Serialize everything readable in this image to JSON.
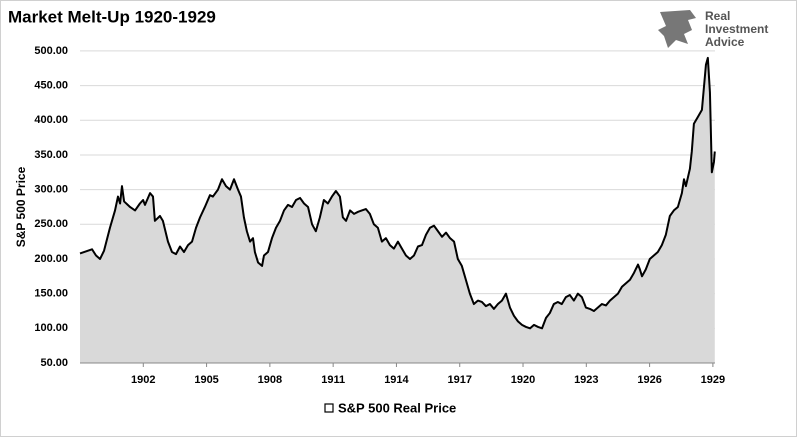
{
  "chart_data": {
    "type": "area",
    "title": "Market Melt-Up 1920-1929",
    "ylabel": "S&P 500 Price",
    "x": [
      1899.0,
      1899.38,
      1899.57,
      1899.76,
      1899.95,
      1900.14,
      1900.42,
      1900.66,
      1900.8,
      1900.9,
      1900.99,
      1901.09,
      1901.37,
      1901.61,
      1901.84,
      1901.99,
      1902.08,
      1902.32,
      1902.46,
      1902.55,
      1902.79,
      1902.93,
      1903.17,
      1903.36,
      1903.55,
      1903.74,
      1903.93,
      1904.12,
      1904.31,
      1904.5,
      1904.69,
      1904.92,
      1905.16,
      1905.3,
      1905.54,
      1905.73,
      1905.92,
      1906.11,
      1906.3,
      1906.49,
      1906.63,
      1906.77,
      1906.91,
      1907.06,
      1907.2,
      1907.29,
      1907.44,
      1907.63,
      1907.72,
      1907.91,
      1908.1,
      1908.29,
      1908.48,
      1908.67,
      1908.86,
      1909.05,
      1909.24,
      1909.43,
      1909.62,
      1909.81,
      1910.0,
      1910.18,
      1910.37,
      1910.56,
      1910.75,
      1910.94,
      1911.13,
      1911.32,
      1911.46,
      1911.61,
      1911.8,
      1911.99,
      1912.18,
      1912.36,
      1912.55,
      1912.74,
      1912.93,
      1913.12,
      1913.31,
      1913.5,
      1913.69,
      1913.88,
      1914.07,
      1914.26,
      1914.45,
      1914.64,
      1914.83,
      1915.02,
      1915.21,
      1915.4,
      1915.59,
      1915.78,
      1915.97,
      1916.16,
      1916.35,
      1916.54,
      1916.73,
      1916.91,
      1917.1,
      1917.29,
      1917.48,
      1917.67,
      1917.86,
      1918.05,
      1918.24,
      1918.43,
      1918.62,
      1918.81,
      1919.0,
      1919.19,
      1919.38,
      1919.57,
      1919.76,
      1919.95,
      1920.14,
      1920.33,
      1920.52,
      1920.71,
      1920.9,
      1921.09,
      1921.27,
      1921.46,
      1921.65,
      1921.84,
      1922.03,
      1922.22,
      1922.41,
      1922.6,
      1922.79,
      1922.98,
      1923.17,
      1923.36,
      1923.55,
      1923.74,
      1923.93,
      1924.12,
      1924.31,
      1924.5,
      1924.69,
      1924.88,
      1925.07,
      1925.26,
      1925.45,
      1925.54,
      1925.64,
      1925.82,
      1926.01,
      1926.2,
      1926.39,
      1926.58,
      1926.77,
      1926.96,
      1927.15,
      1927.34,
      1927.53,
      1927.63,
      1927.72,
      1927.91,
      1928.0,
      1928.1,
      1928.29,
      1928.48,
      1928.67,
      1928.76,
      1928.86,
      1928.95,
      1929.05,
      1929.09
    ],
    "series": [
      {
        "name": "S&P 500 Real Price",
        "color": "#000000",
        "area_color": "#d9d9d9",
        "values": [
          208,
          212,
          214,
          205,
          200,
          212,
          245,
          270,
          290,
          280,
          305,
          283,
          275,
          270,
          280,
          285,
          278,
          295,
          290,
          255,
          262,
          255,
          225,
          210,
          207,
          218,
          210,
          220,
          225,
          245,
          260,
          275,
          292,
          290,
          300,
          315,
          305,
          300,
          315,
          300,
          290,
          260,
          240,
          225,
          230,
          210,
          195,
          190,
          205,
          210,
          230,
          245,
          255,
          270,
          278,
          275,
          285,
          288,
          280,
          275,
          250,
          240,
          260,
          285,
          280,
          290,
          298,
          290,
          260,
          255,
          270,
          265,
          268,
          270,
          272,
          265,
          250,
          245,
          225,
          230,
          220,
          215,
          225,
          215,
          205,
          200,
          205,
          218,
          220,
          235,
          245,
          248,
          240,
          232,
          238,
          230,
          225,
          200,
          190,
          170,
          150,
          135,
          140,
          138,
          132,
          135,
          128,
          135,
          140,
          150,
          130,
          118,
          110,
          105,
          102,
          100,
          105,
          102,
          100,
          115,
          122,
          135,
          138,
          135,
          145,
          148,
          140,
          150,
          145,
          130,
          128,
          125,
          130,
          135,
          133,
          140,
          145,
          150,
          160,
          165,
          170,
          180,
          192,
          185,
          175,
          185,
          200,
          205,
          210,
          220,
          235,
          262,
          270,
          275,
          295,
          315,
          305,
          330,
          355,
          395,
          405,
          415,
          480,
          490,
          440,
          325,
          340,
          355
        ]
      }
    ],
    "xlim": [
      1899,
      1929.1
    ],
    "xticks": [
      1902,
      1905,
      1908,
      1911,
      1914,
      1917,
      1920,
      1923,
      1926,
      1929
    ],
    "ylim": [
      50,
      510
    ],
    "yticks": [
      {
        "value": 50,
        "label": "50.00"
      },
      {
        "value": 100,
        "label": "100.00"
      },
      {
        "value": 150,
        "label": "150.00"
      },
      {
        "value": 200,
        "label": "200.00"
      },
      {
        "value": 250,
        "label": "250.00"
      },
      {
        "value": 300,
        "label": "300.00"
      },
      {
        "value": 350,
        "label": "350.00"
      },
      {
        "value": 400,
        "label": "400.00"
      },
      {
        "value": 450,
        "label": "450.00"
      },
      {
        "value": 500,
        "label": "500.00"
      }
    ],
    "grid": true,
    "legend": "bottom"
  },
  "logo": [
    "Real",
    "Investment",
    "Advice"
  ]
}
